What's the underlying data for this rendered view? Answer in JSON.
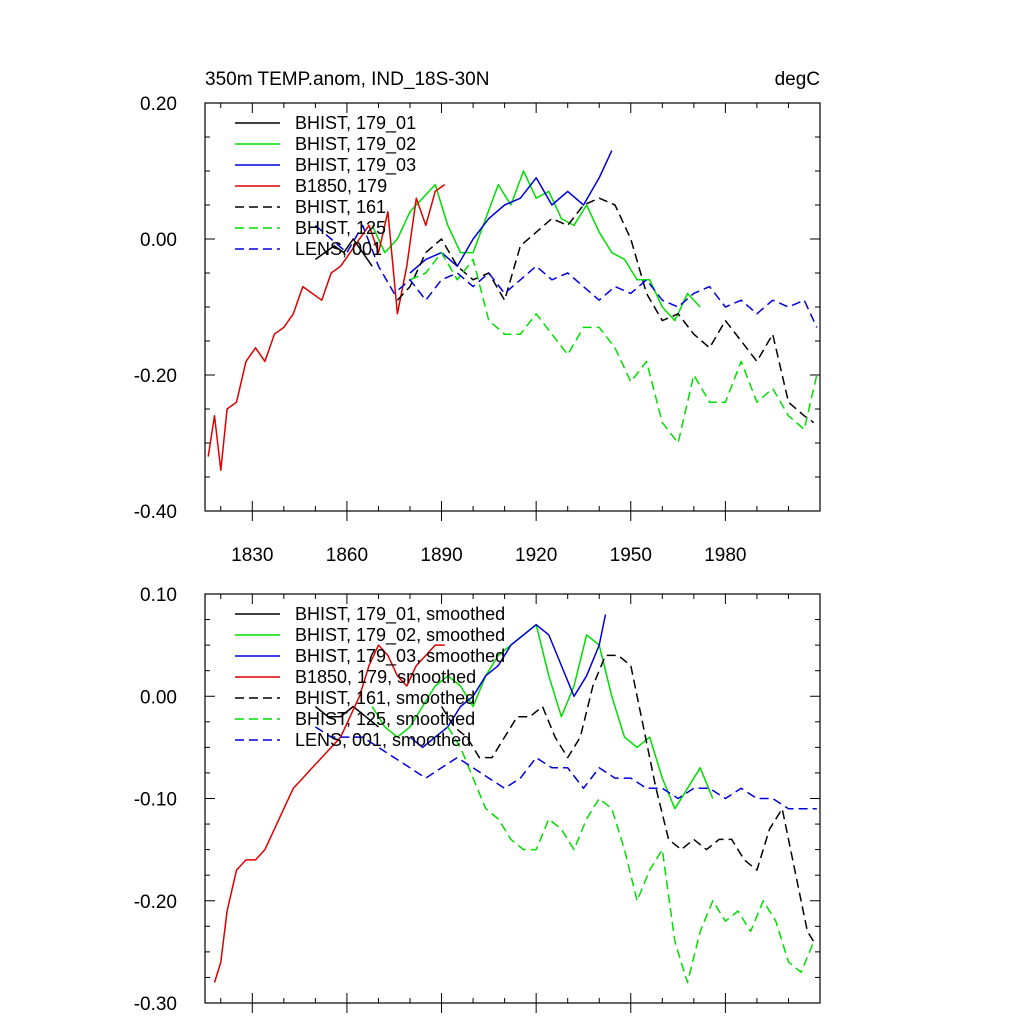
{
  "chart_data": [
    {
      "type": "line",
      "title": "350m TEMP.anom, IND_18S-30N",
      "units": "degC",
      "xlim": [
        1815,
        2010
      ],
      "ylim": [
        -0.4,
        0.2
      ],
      "x_ticks": [
        1830,
        1860,
        1890,
        1920,
        1950,
        1980
      ],
      "x_tick_labels": [
        "1830",
        "1860",
        "1890",
        "1920",
        "1950",
        "1980"
      ],
      "y_ticks": [
        -0.4,
        -0.2,
        0.0,
        0.2
      ],
      "y_tick_labels": [
        "-0.40",
        "-0.20",
        "0.00",
        "0.20"
      ],
      "series": [
        {
          "name": "BHIST, 179_01",
          "color": "#000000",
          "dash": "solid",
          "x": [
            1850,
            1853,
            1856,
            1859,
            1862,
            1865,
            1868
          ],
          "y": [
            -0.03,
            -0.02,
            -0.01,
            -0.02,
            0.0,
            -0.02,
            -0.04
          ]
        },
        {
          "name": "BHIST, 179_02",
          "color": "#00dd00",
          "dash": "solid",
          "x": [
            1868,
            1872,
            1876,
            1880,
            1884,
            1888,
            1892,
            1896,
            1900,
            1904,
            1908,
            1912,
            1916,
            1920,
            1924,
            1928,
            1932,
            1936,
            1940,
            1944,
            1948,
            1952,
            1956,
            1960,
            1964,
            1968,
            1972
          ],
          "y": [
            0.02,
            -0.02,
            0.0,
            0.04,
            0.06,
            0.08,
            0.02,
            -0.02,
            -0.02,
            0.03,
            0.08,
            0.05,
            0.1,
            0.06,
            0.07,
            0.03,
            0.02,
            0.05,
            0.01,
            -0.02,
            -0.03,
            -0.06,
            -0.06,
            -0.1,
            -0.12,
            -0.08,
            -0.1
          ]
        },
        {
          "name": "BHIST, 179_03",
          "color": "#0000dd",
          "dash": "solid",
          "x": [
            1880,
            1885,
            1890,
            1895,
            1900,
            1905,
            1910,
            1915,
            1920,
            1925,
            1930,
            1935,
            1940,
            1944
          ],
          "y": [
            -0.05,
            -0.03,
            -0.02,
            -0.04,
            0.0,
            0.03,
            0.05,
            0.06,
            0.09,
            0.05,
            0.07,
            0.05,
            0.09,
            0.13
          ]
        },
        {
          "name": "B1850, 179",
          "color": "#dd0000",
          "dash": "solid",
          "x": [
            1816,
            1818,
            1820,
            1822,
            1825,
            1828,
            1831,
            1834,
            1837,
            1840,
            1843,
            1846,
            1849,
            1852,
            1855,
            1858,
            1861,
            1864,
            1867,
            1870,
            1873,
            1876,
            1879,
            1882,
            1885,
            1888,
            1891
          ],
          "y": [
            -0.32,
            -0.26,
            -0.34,
            -0.25,
            -0.24,
            -0.18,
            -0.16,
            -0.18,
            -0.14,
            -0.13,
            -0.11,
            -0.07,
            -0.08,
            -0.09,
            -0.05,
            -0.04,
            -0.02,
            0.0,
            0.02,
            -0.02,
            0.04,
            -0.11,
            -0.04,
            0.06,
            0.02,
            0.07,
            0.08
          ]
        },
        {
          "name": "BHIST, 161",
          "color": "#000000",
          "dash": "dashed",
          "x": [
            1876,
            1880,
            1885,
            1890,
            1895,
            1900,
            1905,
            1910,
            1915,
            1920,
            1925,
            1930,
            1935,
            1940,
            1945,
            1950,
            1955,
            1960,
            1965,
            1970,
            1975,
            1980,
            1985,
            1990,
            1995,
            2000,
            2005,
            2008
          ],
          "y": [
            -0.09,
            -0.07,
            -0.02,
            0.0,
            -0.04,
            -0.06,
            -0.05,
            -0.09,
            -0.01,
            0.01,
            0.03,
            0.02,
            0.05,
            0.06,
            0.05,
            0.0,
            -0.08,
            -0.12,
            -0.11,
            -0.14,
            -0.16,
            -0.12,
            -0.15,
            -0.18,
            -0.14,
            -0.24,
            -0.26,
            -0.27
          ]
        },
        {
          "name": "BHIST, 125",
          "color": "#00dd00",
          "dash": "dashed",
          "x": [
            1880,
            1885,
            1890,
            1895,
            1900,
            1905,
            1910,
            1915,
            1920,
            1925,
            1930,
            1935,
            1940,
            1945,
            1950,
            1955,
            1960,
            1965,
            1970,
            1975,
            1980,
            1985,
            1990,
            1995,
            2000,
            2005,
            2009
          ],
          "y": [
            -0.06,
            -0.05,
            -0.02,
            -0.06,
            -0.03,
            -0.12,
            -0.14,
            -0.14,
            -0.11,
            -0.14,
            -0.17,
            -0.13,
            -0.13,
            -0.16,
            -0.21,
            -0.18,
            -0.27,
            -0.3,
            -0.2,
            -0.24,
            -0.24,
            -0.18,
            -0.24,
            -0.22,
            -0.26,
            -0.28,
            -0.2
          ]
        },
        {
          "name": "LENS, 001",
          "color": "#0000dd",
          "dash": "dashed",
          "x": [
            1850,
            1855,
            1860,
            1865,
            1870,
            1875,
            1880,
            1885,
            1890,
            1895,
            1900,
            1905,
            1910,
            1915,
            1920,
            1925,
            1930,
            1935,
            1940,
            1945,
            1950,
            1955,
            1960,
            1965,
            1970,
            1975,
            1980,
            1985,
            1990,
            1995,
            2000,
            2005,
            2009
          ],
          "y": [
            0.02,
            0.0,
            -0.02,
            0.02,
            -0.04,
            -0.08,
            -0.06,
            -0.09,
            -0.06,
            -0.05,
            -0.07,
            -0.05,
            -0.08,
            -0.06,
            -0.04,
            -0.06,
            -0.05,
            -0.07,
            -0.09,
            -0.07,
            -0.08,
            -0.06,
            -0.09,
            -0.1,
            -0.08,
            -0.07,
            -0.1,
            -0.09,
            -0.11,
            -0.09,
            -0.1,
            -0.09,
            -0.13
          ]
        }
      ]
    },
    {
      "type": "line",
      "title": "",
      "xlim": [
        1815,
        2010
      ],
      "ylim": [
        -0.3,
        0.1
      ],
      "x_ticks": [
        1830,
        1860,
        1890,
        1920,
        1950,
        1980
      ],
      "y_ticks": [
        -0.3,
        -0.2,
        -0.1,
        0.0,
        0.1
      ],
      "y_tick_labels": [
        "-0.30",
        "-0.20",
        "-0.10",
        "0.00",
        "0.10"
      ],
      "series": [
        {
          "name": "BHIST, 179_01, smoothed",
          "color": "#000000",
          "dash": "solid",
          "x": [
            1850,
            1854,
            1858,
            1862,
            1866,
            1870
          ],
          "y": [
            -0.01,
            -0.02,
            -0.02,
            -0.01,
            -0.02,
            -0.03
          ]
        },
        {
          "name": "BHIST, 179_02, smoothed",
          "color": "#00dd00",
          "dash": "solid",
          "x": [
            1868,
            1872,
            1876,
            1880,
            1884,
            1888,
            1892,
            1896,
            1900,
            1904,
            1908,
            1912,
            1916,
            1920,
            1924,
            1928,
            1932,
            1936,
            1940,
            1944,
            1948,
            1952,
            1956,
            1960,
            1964,
            1968,
            1972,
            1976
          ],
          "y": [
            -0.01,
            -0.03,
            -0.04,
            -0.03,
            -0.01,
            0.01,
            0.02,
            0.01,
            -0.01,
            0.02,
            0.04,
            0.05,
            0.06,
            0.07,
            0.02,
            -0.02,
            0.01,
            0.06,
            0.05,
            0.0,
            -0.04,
            -0.05,
            -0.04,
            -0.08,
            -0.11,
            -0.09,
            -0.07,
            -0.1
          ]
        },
        {
          "name": "BHIST, 179_03, smoothed",
          "color": "#0000dd",
          "dash": "solid",
          "x": [
            1880,
            1884,
            1888,
            1892,
            1896,
            1900,
            1904,
            1908,
            1912,
            1916,
            1920,
            1924,
            1928,
            1932,
            1936,
            1940,
            1942
          ],
          "y": [
            -0.04,
            -0.05,
            -0.04,
            -0.03,
            -0.01,
            0.0,
            0.02,
            0.03,
            0.05,
            0.06,
            0.07,
            0.06,
            0.03,
            0.0,
            0.02,
            0.05,
            0.08
          ]
        },
        {
          "name": "B1850, 179, smoothed",
          "color": "#dd0000",
          "dash": "solid",
          "x": [
            1818,
            1820,
            1822,
            1825,
            1828,
            1831,
            1834,
            1837,
            1840,
            1843,
            1846,
            1849,
            1852,
            1855,
            1858,
            1861,
            1864,
            1867,
            1870,
            1873,
            1876,
            1879,
            1882,
            1885,
            1888,
            1891
          ],
          "y": [
            -0.28,
            -0.26,
            -0.21,
            -0.17,
            -0.16,
            -0.16,
            -0.15,
            -0.13,
            -0.11,
            -0.09,
            -0.08,
            -0.07,
            -0.06,
            -0.05,
            -0.04,
            -0.02,
            0.0,
            0.03,
            0.05,
            0.04,
            0.02,
            0.01,
            0.03,
            0.04,
            0.05,
            0.05
          ]
        },
        {
          "name": "BHIST, 161, smoothed",
          "color": "#000000",
          "dash": "dashed",
          "x": [
            1890,
            1894,
            1898,
            1902,
            1906,
            1910,
            1914,
            1918,
            1922,
            1926,
            1930,
            1934,
            1938,
            1942,
            1946,
            1950,
            1954,
            1958,
            1962,
            1966,
            1970,
            1974,
            1978,
            1982,
            1986,
            1990,
            1994,
            1998,
            2002,
            2006,
            2008
          ],
          "y": [
            -0.01,
            -0.03,
            -0.04,
            -0.06,
            -0.06,
            -0.04,
            -0.02,
            -0.02,
            -0.01,
            -0.04,
            -0.06,
            -0.04,
            0.01,
            0.04,
            0.04,
            0.03,
            -0.03,
            -0.09,
            -0.14,
            -0.15,
            -0.14,
            -0.15,
            -0.14,
            -0.14,
            -0.16,
            -0.17,
            -0.13,
            -0.11,
            -0.17,
            -0.23,
            -0.24
          ]
        },
        {
          "name": "BHIST, 125, smoothed",
          "color": "#00dd00",
          "dash": "dashed",
          "x": [
            1892,
            1896,
            1900,
            1904,
            1908,
            1912,
            1916,
            1920,
            1924,
            1928,
            1932,
            1936,
            1940,
            1944,
            1948,
            1952,
            1956,
            1960,
            1964,
            1968,
            1972,
            1976,
            1980,
            1984,
            1988,
            1992,
            1996,
            2000,
            2004,
            2008
          ],
          "y": [
            -0.03,
            -0.05,
            -0.08,
            -0.11,
            -0.12,
            -0.14,
            -0.15,
            -0.15,
            -0.12,
            -0.13,
            -0.15,
            -0.12,
            -0.1,
            -0.11,
            -0.15,
            -0.2,
            -0.17,
            -0.15,
            -0.24,
            -0.28,
            -0.23,
            -0.2,
            -0.22,
            -0.21,
            -0.23,
            -0.2,
            -0.22,
            -0.26,
            -0.27,
            -0.24
          ]
        },
        {
          "name": "LENS, 001, smoothed",
          "color": "#0000dd",
          "dash": "dashed",
          "x": [
            1850,
            1855,
            1860,
            1865,
            1870,
            1875,
            1880,
            1885,
            1890,
            1895,
            1900,
            1905,
            1910,
            1915,
            1920,
            1925,
            1930,
            1935,
            1940,
            1945,
            1950,
            1955,
            1960,
            1965,
            1970,
            1975,
            1980,
            1985,
            1990,
            1995,
            2000,
            2005,
            2009
          ],
          "y": [
            -0.03,
            -0.04,
            -0.04,
            -0.04,
            -0.05,
            -0.06,
            -0.07,
            -0.08,
            -0.07,
            -0.06,
            -0.07,
            -0.08,
            -0.09,
            -0.08,
            -0.06,
            -0.07,
            -0.07,
            -0.09,
            -0.07,
            -0.08,
            -0.08,
            -0.09,
            -0.09,
            -0.1,
            -0.09,
            -0.09,
            -0.1,
            -0.09,
            -0.1,
            -0.1,
            -0.11,
            -0.11,
            -0.11
          ]
        }
      ]
    }
  ]
}
